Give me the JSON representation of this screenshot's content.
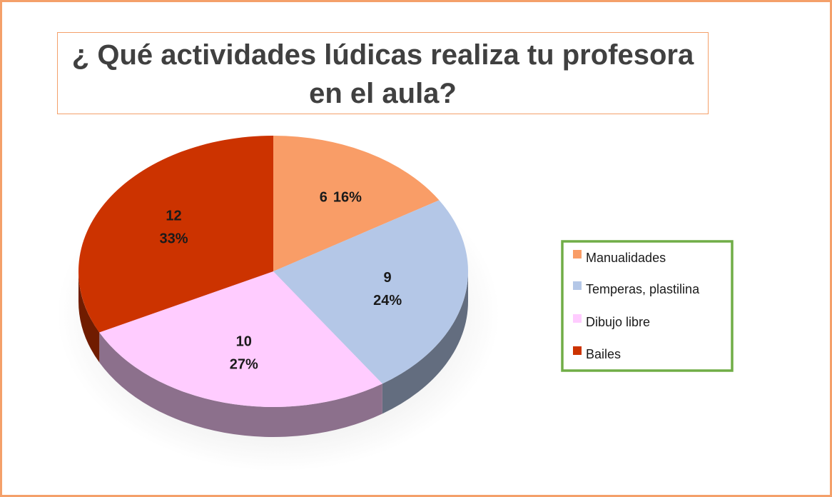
{
  "chart_data": {
    "type": "pie",
    "title": "¿ Qué actividades lúdicas realiza tu profesora en el aula?",
    "categories": [
      "Manualidades",
      "Temperas, plastilina",
      "Dibujo libre",
      "Bailes"
    ],
    "values": [
      6,
      9,
      10,
      12
    ],
    "percent_labels": [
      "16%",
      "24%",
      "27%",
      "33%"
    ],
    "colors": [
      "#f99d67",
      "#b4c7e7",
      "#ffccff",
      "#cc3300"
    ],
    "legend": "right"
  }
}
